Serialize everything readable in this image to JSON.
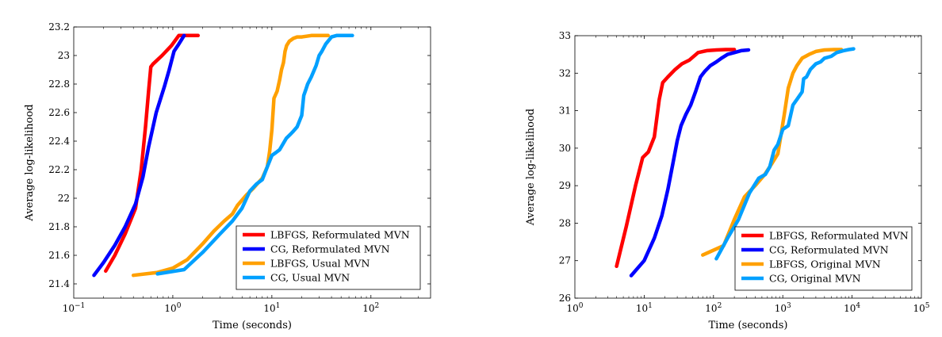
{
  "chart_data": [
    {
      "type": "line",
      "title": "",
      "xlabel": "Time (seconds)",
      "ylabel": "Average log-likelihood",
      "xscale": "log",
      "xlim": [
        0.1,
        400
      ],
      "ylim": [
        21.3,
        23.2
      ],
      "xticks": [
        {
          "value": 0.1,
          "base": "10",
          "exp": "−1"
        },
        {
          "value": 1,
          "base": "10",
          "exp": "0"
        },
        {
          "value": 10,
          "base": "10",
          "exp": "1"
        },
        {
          "value": 100,
          "base": "10",
          "exp": "2"
        }
      ],
      "yticks": [
        {
          "value": 21.4,
          "label": "21.4"
        },
        {
          "value": 21.6,
          "label": "21.6"
        },
        {
          "value": 21.8,
          "label": "21.8"
        },
        {
          "value": 22.0,
          "label": "22"
        },
        {
          "value": 22.2,
          "label": "22.2"
        },
        {
          "value": 22.4,
          "label": "22.4"
        },
        {
          "value": 22.6,
          "label": "22.6"
        },
        {
          "value": 22.8,
          "label": "22.8"
        },
        {
          "value": 23.0,
          "label": "23"
        },
        {
          "value": 23.2,
          "label": "23.2"
        }
      ],
      "legend_position": "bottom-right",
      "series": [
        {
          "name": "LBFGS, Reformulated MVN",
          "color": "#ff0000",
          "x": [
            0.21,
            0.26,
            0.33,
            0.42,
            0.48,
            0.53,
            0.57,
            0.6,
            0.63,
            0.78,
            0.97,
            1.15,
            1.35,
            1.8
          ],
          "y": [
            21.49,
            21.6,
            21.75,
            21.93,
            22.2,
            22.5,
            22.75,
            22.92,
            22.94,
            23.0,
            23.07,
            23.14,
            23.14,
            23.14
          ]
        },
        {
          "name": "CG, Reformulated MVN",
          "color": "#0000ff",
          "x": [
            0.16,
            0.2,
            0.26,
            0.33,
            0.42,
            0.5,
            0.57,
            0.68,
            0.82,
            0.92,
            1.03,
            1.15,
            1.3
          ],
          "y": [
            21.46,
            21.55,
            21.67,
            21.8,
            21.96,
            22.15,
            22.36,
            22.6,
            22.78,
            22.9,
            23.03,
            23.08,
            23.14
          ]
        },
        {
          "name": "LBFGS, Usual MVN",
          "color": "#ffa000",
          "x": [
            0.4,
            0.7,
            1.0,
            1.4,
            2.0,
            2.6,
            3.3,
            4.0,
            4.5,
            5.5,
            6.5,
            8.0,
            9.0,
            9.5,
            10.0,
            10.5,
            11.3,
            12.0,
            12.5,
            13.1,
            13.6,
            14.1,
            15.0,
            16.5,
            18.0,
            20.0,
            25.0,
            30.0,
            37.0
          ],
          "y": [
            21.46,
            21.48,
            21.51,
            21.57,
            21.68,
            21.77,
            21.84,
            21.89,
            21.95,
            22.02,
            22.07,
            22.14,
            22.22,
            22.33,
            22.48,
            22.7,
            22.75,
            22.83,
            22.9,
            22.95,
            23.03,
            23.07,
            23.1,
            23.12,
            23.13,
            23.13,
            23.14,
            23.14,
            23.14
          ]
        },
        {
          "name": "CG, Usual MVN",
          "color": "#00a0ff",
          "x": [
            0.7,
            1.3,
            2.0,
            3.0,
            4.0,
            5.0,
            6.0,
            7.0,
            8.0,
            9.0,
            10.0,
            11.0,
            12.0,
            14.0,
            15.5,
            16.5,
            18.0,
            20.0,
            21.0,
            22.0,
            23.0,
            25.0,
            28.0,
            30.0,
            32.0,
            35.0,
            40.0,
            45.0,
            55.0,
            65.0
          ],
          "y": [
            21.47,
            21.5,
            21.62,
            21.75,
            21.84,
            21.93,
            22.05,
            22.1,
            22.13,
            22.22,
            22.3,
            22.32,
            22.34,
            22.42,
            22.45,
            22.47,
            22.5,
            22.58,
            22.72,
            22.76,
            22.8,
            22.85,
            22.93,
            23.0,
            23.03,
            23.08,
            23.13,
            23.14,
            23.14,
            23.14
          ]
        }
      ]
    },
    {
      "type": "line",
      "title": "",
      "xlabel": "Time (seconds)",
      "ylabel": "Average log-likelihood",
      "xscale": "log",
      "xlim": [
        1,
        100000
      ],
      "ylim": [
        26,
        33
      ],
      "xticks": [
        {
          "value": 1,
          "base": "10",
          "exp": "0"
        },
        {
          "value": 10,
          "base": "10",
          "exp": "1"
        },
        {
          "value": 100,
          "base": "10",
          "exp": "2"
        },
        {
          "value": 1000,
          "base": "10",
          "exp": "3"
        },
        {
          "value": 10000,
          "base": "10",
          "exp": "4"
        },
        {
          "value": 100000,
          "base": "10",
          "exp": "5"
        }
      ],
      "yticks": [
        {
          "value": 26,
          "label": "26"
        },
        {
          "value": 27,
          "label": "27"
        },
        {
          "value": 28,
          "label": "28"
        },
        {
          "value": 29,
          "label": "29"
        },
        {
          "value": 30,
          "label": "30"
        },
        {
          "value": 31,
          "label": "31"
        },
        {
          "value": 32,
          "label": "32"
        },
        {
          "value": 33,
          "label": "33"
        }
      ],
      "legend_position": "bottom-right",
      "series": [
        {
          "name": "LBFGS, Reformulated MVN",
          "color": "#ff0000",
          "x": [
            4.0,
            5.5,
            7.5,
            9.5,
            11.5,
            14.0,
            16.5,
            18.5,
            22.0,
            28.0,
            35.0,
            45.0,
            60.0,
            80.0,
            110.0,
            150.0,
            200.0
          ],
          "y": [
            26.85,
            27.9,
            29.0,
            29.75,
            29.9,
            30.3,
            31.3,
            31.75,
            31.9,
            32.1,
            32.25,
            32.35,
            32.55,
            32.6,
            32.62,
            32.63,
            32.63
          ]
        },
        {
          "name": "CG, Reformulated MVN",
          "color": "#0000ff",
          "x": [
            6.5,
            10.0,
            14.0,
            18.0,
            22.0,
            26.0,
            30.0,
            34.0,
            40.0,
            47.0,
            55.0,
            65.0,
            75.0,
            90.0,
            110.0,
            130.0,
            160.0,
            200.0,
            250.0,
            320.0
          ],
          "y": [
            26.6,
            27.0,
            27.6,
            28.2,
            28.9,
            29.6,
            30.2,
            30.6,
            30.9,
            31.15,
            31.5,
            31.9,
            32.05,
            32.2,
            32.3,
            32.4,
            32.5,
            32.55,
            32.6,
            32.62
          ]
        },
        {
          "name": "LBFGS, Original MVN",
          "color": "#ffa000",
          "x": [
            70.0,
            140.0,
            200.0,
            280.0,
            400.0,
            550.0,
            700.0,
            850.0,
            950.0,
            1050.0,
            1200.0,
            1400.0,
            1600.0,
            1900.0,
            2400.0,
            3000.0,
            4000.0,
            5500.0,
            7000.0
          ],
          "y": [
            27.15,
            27.4,
            28.1,
            28.7,
            29.0,
            29.3,
            29.6,
            29.85,
            30.4,
            30.9,
            31.6,
            32.0,
            32.2,
            32.4,
            32.5,
            32.58,
            32.62,
            32.63,
            32.63
          ]
        },
        {
          "name": "CG, Original MVN",
          "color": "#00a0ff",
          "x": [
            110.0,
            160.0,
            230.0,
            330.0,
            450.0,
            560.0,
            650.0,
            750.0,
            850.0,
            1000.0,
            1200.0,
            1400.0,
            1600.0,
            1900.0,
            2000.0,
            2200.0,
            2500.0,
            3000.0,
            3500.0,
            4000.0,
            5000.0,
            6000.0,
            7500.0,
            9000.0,
            10500.0
          ],
          "y": [
            27.05,
            27.6,
            28.1,
            28.8,
            29.2,
            29.3,
            29.5,
            29.95,
            30.1,
            30.5,
            30.6,
            31.15,
            31.3,
            31.5,
            31.85,
            31.9,
            32.1,
            32.25,
            32.3,
            32.4,
            32.45,
            32.55,
            32.6,
            32.63,
            32.65
          ]
        }
      ]
    }
  ]
}
